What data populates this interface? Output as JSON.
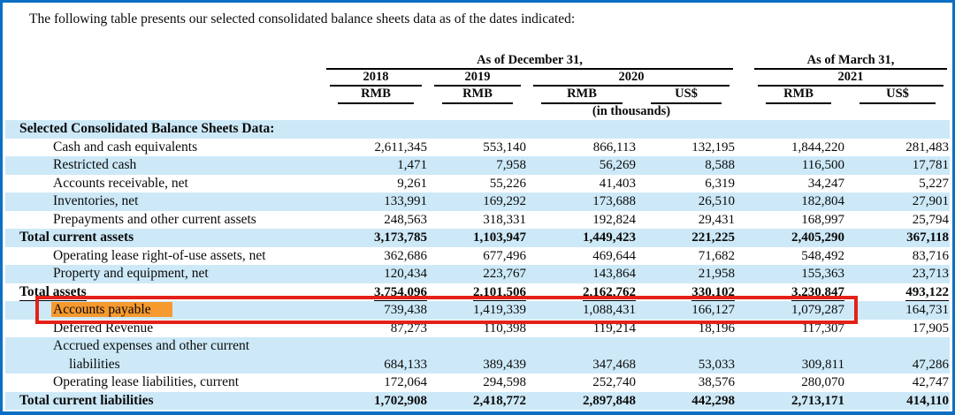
{
  "intro": "The following table presents our selected consolidated balance sheets data as of the dates indicated:",
  "header": {
    "group1": "As of December 31,",
    "group2": "As of March 31,",
    "years": [
      "2018",
      "2019",
      "2020",
      "2021"
    ],
    "currencies": [
      "RMB",
      "RMB",
      "RMB",
      "US$",
      "RMB",
      "US$"
    ],
    "unit_note": "(in thousands)"
  },
  "colors": {
    "row_stripe": "#cde9f8",
    "highlight_orange": "#f6992e",
    "annotation_red": "#e32119",
    "frame_blue": "#0d6fc4"
  },
  "annotation": {
    "highlighted_label": "Accounts payable",
    "box_style": "red rectangle around Accounts payable row, excluding last US$ column"
  },
  "table": {
    "rows": [
      {
        "label": "Selected Consolidated Balance Sheets Data:",
        "type": "section",
        "shaded": true,
        "values": []
      },
      {
        "label": "Cash and cash equivalents",
        "type": "item",
        "shaded": false,
        "values": [
          "2,611,345",
          "553,140",
          "866,113",
          "132,195",
          "1,844,220",
          "281,483"
        ]
      },
      {
        "label": "Restricted cash",
        "type": "item",
        "shaded": true,
        "values": [
          "1,471",
          "7,958",
          "56,269",
          "8,588",
          "116,500",
          "17,781"
        ]
      },
      {
        "label": "Accounts receivable, net",
        "type": "item",
        "shaded": false,
        "values": [
          "9,261",
          "55,226",
          "41,403",
          "6,319",
          "34,247",
          "5,227"
        ]
      },
      {
        "label": "Inventories, net",
        "type": "item",
        "shaded": true,
        "values": [
          "133,991",
          "169,292",
          "173,688",
          "26,510",
          "182,804",
          "27,901"
        ]
      },
      {
        "label": "Prepayments and other current assets",
        "type": "item",
        "shaded": false,
        "values": [
          "248,563",
          "318,331",
          "192,824",
          "29,431",
          "168,997",
          "25,794"
        ]
      },
      {
        "label": "Total current assets",
        "type": "total",
        "shaded": true,
        "values": [
          "3,173,785",
          "1,103,947",
          "1,449,423",
          "221,225",
          "2,405,290",
          "367,118"
        ]
      },
      {
        "label": "Operating lease right-of-use assets, net",
        "type": "item",
        "shaded": false,
        "values": [
          "362,686",
          "677,496",
          "469,644",
          "71,682",
          "548,492",
          "83,716"
        ]
      },
      {
        "label": "Property and equipment, net",
        "type": "item",
        "shaded": true,
        "values": [
          "120,434",
          "223,767",
          "143,864",
          "21,958",
          "155,363",
          "23,713"
        ]
      },
      {
        "label": "Total assets",
        "type": "total",
        "shaded": false,
        "underline": true,
        "values": [
          "3,754,096",
          "2,101,506",
          "2,162,762",
          "330,102",
          "3,230,847",
          "493,122"
        ]
      },
      {
        "label": "Accounts payable",
        "type": "item",
        "shaded": true,
        "annotated": true,
        "values": [
          "739,438",
          "1,419,339",
          "1,088,431",
          "166,127",
          "1,079,287",
          "164,731"
        ]
      },
      {
        "label": "Deferred Revenue",
        "type": "item",
        "shaded": false,
        "values": [
          "87,273",
          "110,398",
          "119,214",
          "18,196",
          "117,307",
          "17,905"
        ]
      },
      {
        "label": "Accrued expenses and other current",
        "label2": "liabilities",
        "type": "item",
        "shaded": true,
        "values": [
          "684,133",
          "389,439",
          "347,468",
          "53,033",
          "309,811",
          "47,286"
        ]
      },
      {
        "label": "Operating lease liabilities, current",
        "type": "item",
        "shaded": false,
        "values": [
          "172,064",
          "294,598",
          "252,740",
          "38,576",
          "280,070",
          "42,747"
        ]
      },
      {
        "label": "Total current liabilities",
        "type": "total",
        "shaded": true,
        "values": [
          "1,702,908",
          "2,418,772",
          "2,897,848",
          "442,298",
          "2,713,171",
          "414,110"
        ]
      }
    ]
  }
}
